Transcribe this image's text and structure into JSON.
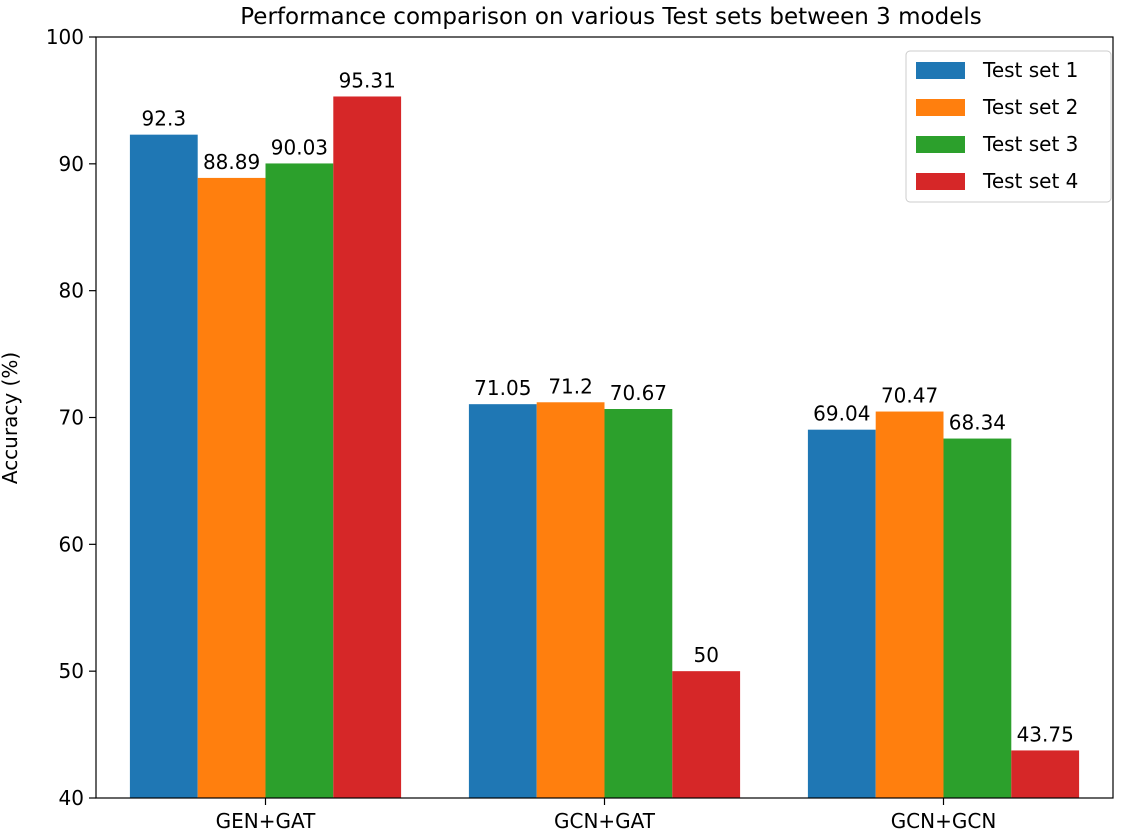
{
  "chart_data": {
    "type": "bar",
    "title": "Performance comparison on various Test sets between 3 models",
    "xlabel": "",
    "ylabel": "Accuracy (%)",
    "categories": [
      "GEN+GAT",
      "GCN+GAT",
      "GCN+GCN"
    ],
    "series": [
      {
        "name": "Test set 1",
        "color": "#1f77b4",
        "values": [
          92.3,
          71.05,
          69.04
        ],
        "labels": [
          "92.3",
          "71.05",
          "69.04"
        ]
      },
      {
        "name": "Test set 2",
        "color": "#ff7f0e",
        "values": [
          88.89,
          71.2,
          70.47
        ],
        "labels": [
          "88.89",
          "71.2",
          "70.47"
        ]
      },
      {
        "name": "Test set 3",
        "color": "#2ca02c",
        "values": [
          90.03,
          70.67,
          68.34
        ],
        "labels": [
          "90.03",
          "70.67",
          "68.34"
        ]
      },
      {
        "name": "Test set 4",
        "color": "#d62728",
        "values": [
          95.31,
          50,
          43.75
        ],
        "labels": [
          "95.31",
          "50",
          "43.75"
        ]
      }
    ],
    "ylim": [
      40,
      100
    ],
    "yticks": [
      "40",
      "50",
      "60",
      "70",
      "80",
      "90",
      "100"
    ],
    "grid": false,
    "legend_position": "top-right"
  }
}
